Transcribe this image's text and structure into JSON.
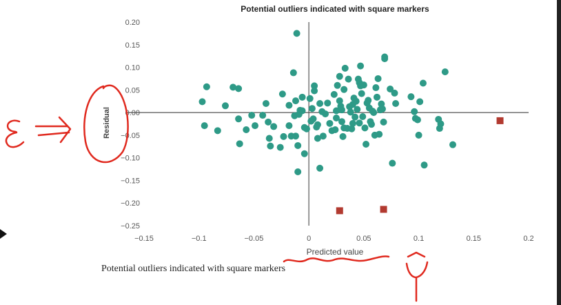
{
  "chart_data": {
    "type": "scatter",
    "title": "Potential outliers indicated with square markers",
    "xlabel": "Predicted value",
    "ylabel": "Residual",
    "xlim": [
      -0.15,
      0.2
    ],
    "ylim": [
      -0.25,
      0.2
    ],
    "xticks": [
      "−0.15",
      "−0.1",
      "−0.05",
      "0",
      "0.05",
      "0.1",
      "0.15",
      "0.2"
    ],
    "yticks": [
      "0.20",
      "0.15",
      "0.10",
      "0.05",
      "0.00",
      "−0.05",
      "−0.10",
      "−0.15",
      "−0.20",
      "−0.25"
    ],
    "xtick_values": [
      -0.15,
      -0.1,
      -0.05,
      0,
      0.05,
      0.1,
      0.15,
      0.2
    ],
    "ytick_values": [
      0.2,
      0.15,
      0.1,
      0.05,
      0,
      -0.05,
      -0.1,
      -0.15,
      -0.2,
      -0.25
    ],
    "grid": false,
    "series": [
      {
        "marker": "circle",
        "color": "#2e9a87",
        "points": [
          [
            -0.097,
            0.024
          ],
          [
            -0.093,
            0.057
          ],
          [
            -0.095,
            -0.029
          ],
          [
            -0.083,
            -0.04
          ],
          [
            -0.076,
            0.015
          ],
          [
            -0.069,
            0.056
          ],
          [
            -0.064,
            0.053
          ],
          [
            -0.064,
            -0.014
          ],
          [
            -0.063,
            -0.069
          ],
          [
            -0.057,
            -0.038
          ],
          [
            -0.052,
            -0.006
          ],
          [
            -0.049,
            -0.029
          ],
          [
            -0.042,
            -0.006
          ],
          [
            -0.039,
            0.02
          ],
          [
            -0.037,
            -0.021
          ],
          [
            -0.036,
            -0.057
          ],
          [
            -0.035,
            -0.074
          ],
          [
            -0.032,
            -0.031
          ],
          [
            -0.026,
            -0.077
          ],
          [
            -0.024,
            0.041
          ],
          [
            -0.023,
            -0.053
          ],
          [
            -0.018,
            0.016
          ],
          [
            -0.018,
            -0.029
          ],
          [
            -0.014,
            0.088
          ],
          [
            -0.013,
            -0.007
          ],
          [
            -0.012,
            -0.052
          ],
          [
            -0.012,
            0.026
          ],
          [
            -0.016,
            -0.052
          ],
          [
            -0.011,
            0.175
          ],
          [
            -0.01,
            -0.073
          ],
          [
            -0.01,
            -0.131
          ],
          [
            -0.009,
            -0.004
          ],
          [
            -0.008,
            0.005
          ],
          [
            -0.006,
            0.004
          ],
          [
            -0.006,
            0.034
          ],
          [
            -0.004,
            -0.033
          ],
          [
            -0.004,
            -0.091
          ],
          [
            -0.002,
            -0.036
          ],
          [
            0.001,
            0.031
          ],
          [
            0.002,
            -0.019
          ],
          [
            0.003,
            0.009
          ],
          [
            0.004,
            -0.014
          ],
          [
            0.005,
            0.048
          ],
          [
            0.005,
            0.059
          ],
          [
            0.007,
            -0.032
          ],
          [
            0.008,
            -0.057
          ],
          [
            0.008,
            -0.027
          ],
          [
            0.01,
            0.02
          ],
          [
            0.01,
            -0.123
          ],
          [
            0.012,
            0.002
          ],
          [
            0.013,
            -0.052
          ],
          [
            0.015,
            -0.003
          ],
          [
            0.017,
            0.021
          ],
          [
            0.019,
            -0.024
          ],
          [
            0.021,
            -0.04
          ],
          [
            0.023,
            0.04
          ],
          [
            0.024,
            -0.038
          ],
          [
            0.025,
            0.004
          ],
          [
            0.025,
            -0.012
          ],
          [
            0.026,
            0.06
          ],
          [
            0.028,
            0.08
          ],
          [
            0.028,
            0.026
          ],
          [
            0.029,
            0.014
          ],
          [
            0.03,
            -0.02
          ],
          [
            0.03,
            0.006
          ],
          [
            0.031,
            -0.053
          ],
          [
            0.032,
            0.051
          ],
          [
            0.032,
            -0.034
          ],
          [
            0.033,
            0.098
          ],
          [
            0.035,
            -0.035
          ],
          [
            0.036,
            0.074
          ],
          [
            0.037,
            0.013
          ],
          [
            0.038,
            0.001
          ],
          [
            0.039,
            -0.036
          ],
          [
            0.04,
            0.018
          ],
          [
            0.04,
            -0.024
          ],
          [
            0.041,
            0.032
          ],
          [
            0.042,
            -0.01
          ],
          [
            0.043,
            0.025
          ],
          [
            0.044,
            0.007
          ],
          [
            0.045,
            0.074
          ],
          [
            0.046,
            -0.023
          ],
          [
            0.046,
            0.066
          ],
          [
            0.047,
            0.103
          ],
          [
            0.047,
            0.059
          ],
          [
            0.048,
            0.042
          ],
          [
            0.049,
            -0.009
          ],
          [
            0.05,
            0.061
          ],
          [
            0.051,
            -0.034
          ],
          [
            0.052,
            -0.07
          ],
          [
            0.053,
            0.021
          ],
          [
            0.054,
            0.027
          ],
          [
            0.055,
            0.01
          ],
          [
            0.056,
            -0.02
          ],
          [
            0.057,
            -0.026
          ],
          [
            0.058,
            0.003
          ],
          [
            0.059,
            0.0
          ],
          [
            0.06,
            -0.05
          ],
          [
            0.061,
            0.055
          ],
          [
            0.062,
            0.034
          ],
          [
            0.063,
            0.075
          ],
          [
            0.064,
            -0.048
          ],
          [
            0.065,
            0.006
          ],
          [
            0.066,
            0.019
          ],
          [
            0.067,
            0.008
          ],
          [
            0.068,
            -0.021
          ],
          [
            0.069,
            0.119
          ],
          [
            0.069,
            0.123
          ],
          [
            0.074,
            0.052
          ],
          [
            0.076,
            -0.112
          ],
          [
            0.078,
            0.043
          ],
          [
            0.079,
            0.02
          ],
          [
            0.093,
            0.035
          ],
          [
            0.096,
            0.002
          ],
          [
            0.097,
            -0.013
          ],
          [
            0.099,
            -0.016
          ],
          [
            0.1,
            -0.05
          ],
          [
            0.101,
            0.024
          ],
          [
            0.104,
            0.065
          ],
          [
            0.105,
            -0.116
          ],
          [
            0.118,
            -0.015
          ],
          [
            0.119,
            -0.035
          ],
          [
            0.12,
            -0.025
          ],
          [
            0.124,
            0.09
          ],
          [
            0.131,
            -0.071
          ]
        ]
      },
      {
        "marker": "square",
        "color": "#b23a30",
        "points": [
          [
            0.028,
            -0.217
          ],
          [
            0.068,
            -0.214
          ],
          [
            0.174,
            -0.018
          ]
        ]
      }
    ]
  },
  "caption": "Potential outliers indicated with square markers"
}
